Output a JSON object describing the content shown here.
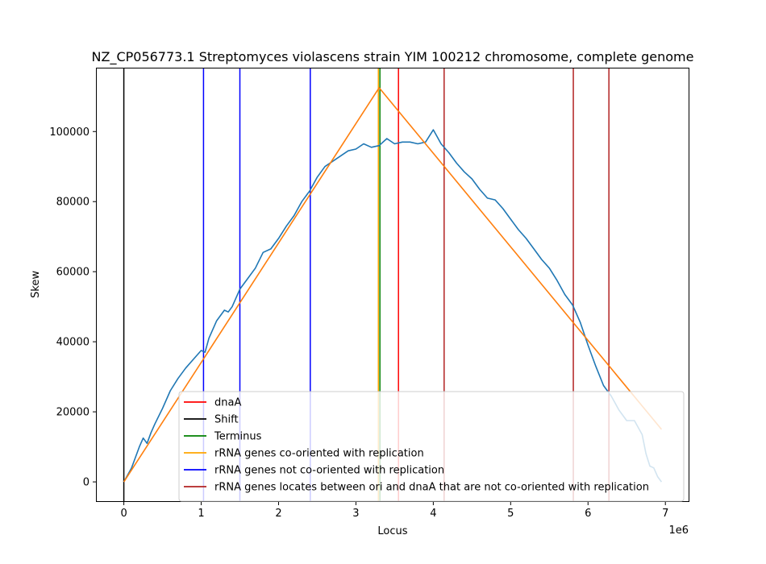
{
  "chart_data": {
    "type": "line",
    "title": "NZ_CP056773.1 Streptomyces violascens strain YIM 100212 chromosome, complete genome",
    "xlabel": "Locus",
    "ylabel": "Skew",
    "x_offset_label": "1e6",
    "xlim": [
      -0.35,
      7.3
    ],
    "ylim": [
      -5500,
      118000
    ],
    "x_ticks": [
      0,
      1,
      2,
      3,
      4,
      5,
      6,
      7
    ],
    "x_tick_labels": [
      "0",
      "1",
      "2",
      "3",
      "4",
      "5",
      "6",
      "7"
    ],
    "y_ticks": [
      0,
      20000,
      40000,
      60000,
      80000,
      100000
    ],
    "y_tick_labels": [
      "0",
      "20000",
      "40000",
      "60000",
      "80000",
      "100000"
    ],
    "grid": false,
    "legend_position": "lower-right",
    "series": [
      {
        "name": "skew",
        "color": "#1f77b4",
        "x": [
          0.0,
          0.05,
          0.1,
          0.15,
          0.2,
          0.25,
          0.3,
          0.35,
          0.4,
          0.5,
          0.6,
          0.7,
          0.8,
          0.9,
          1.0,
          1.05,
          1.1,
          1.2,
          1.3,
          1.35,
          1.4,
          1.5,
          1.6,
          1.7,
          1.8,
          1.9,
          2.0,
          2.1,
          2.2,
          2.3,
          2.4,
          2.5,
          2.6,
          2.7,
          2.8,
          2.9,
          3.0,
          3.1,
          3.2,
          3.3,
          3.4,
          3.5,
          3.6,
          3.7,
          3.8,
          3.9,
          4.0,
          4.05,
          4.1,
          4.2,
          4.3,
          4.4,
          4.5,
          4.6,
          4.7,
          4.8,
          4.9,
          5.0,
          5.1,
          5.2,
          5.3,
          5.4,
          5.5,
          5.6,
          5.7,
          5.8,
          5.9,
          6.0,
          6.1,
          6.2,
          6.3,
          6.4,
          6.5,
          6.6,
          6.7,
          6.75,
          6.8,
          6.85,
          6.9,
          6.95
        ],
        "y": [
          0,
          2000,
          4000,
          7000,
          10000,
          12500,
          11000,
          14000,
          16500,
          21000,
          26000,
          29500,
          32500,
          35000,
          37500,
          37000,
          41000,
          46000,
          49000,
          48500,
          50000,
          55000,
          58000,
          61000,
          65500,
          66500,
          69500,
          73000,
          76000,
          80000,
          83000,
          87000,
          90000,
          91500,
          93000,
          94500,
          95000,
          96500,
          95500,
          96000,
          98000,
          96500,
          97000,
          97000,
          96500,
          97000,
          100500,
          98500,
          96500,
          94000,
          91000,
          88500,
          86500,
          83500,
          81000,
          80500,
          78000,
          75000,
          72000,
          69500,
          66500,
          63500,
          61000,
          57500,
          53500,
          50500,
          45500,
          39000,
          33000,
          27500,
          24500,
          20500,
          17500,
          17500,
          13500,
          8000,
          4500,
          4000,
          1500,
          0
        ]
      },
      {
        "name": "rRNA genes co-oriented with replication",
        "color": "#ff7f0e",
        "x": [
          0.0,
          3.3,
          6.95
        ],
        "y": [
          0,
          112500,
          15000
        ]
      }
    ],
    "vlines": [
      {
        "name": "dnaA",
        "color": "#ff0000",
        "x": [
          3.55
        ]
      },
      {
        "name": "Shift",
        "color": "#000000",
        "x": [
          0.0
        ]
      },
      {
        "name": "Terminus",
        "color": "#008000",
        "x": [
          3.31
        ]
      },
      {
        "name": "rRNA genes co-oriented with replication",
        "color": "#ffa500",
        "x": [
          3.29
        ]
      },
      {
        "name": "rRNA genes not co-oriented with replication",
        "color": "#0000ff",
        "x": [
          1.03,
          1.5,
          2.41
        ]
      },
      {
        "name": "rRNA genes locates between ori and dnaA that are not co-oriented with replication",
        "color": "#b22222",
        "x": [
          4.14,
          5.81,
          6.27
        ]
      }
    ],
    "legend": [
      {
        "label": "dnaA",
        "color": "#ff0000"
      },
      {
        "label": "Shift",
        "color": "#000000"
      },
      {
        "label": "Terminus",
        "color": "#008000"
      },
      {
        "label": "rRNA genes co-oriented with replication",
        "color": "#ffa500"
      },
      {
        "label": "rRNA genes not co-oriented with replication",
        "color": "#0000ff"
      },
      {
        "label": "rRNA genes locates between ori and dnaA that are not co-oriented with replication",
        "color": "#b22222"
      }
    ]
  }
}
